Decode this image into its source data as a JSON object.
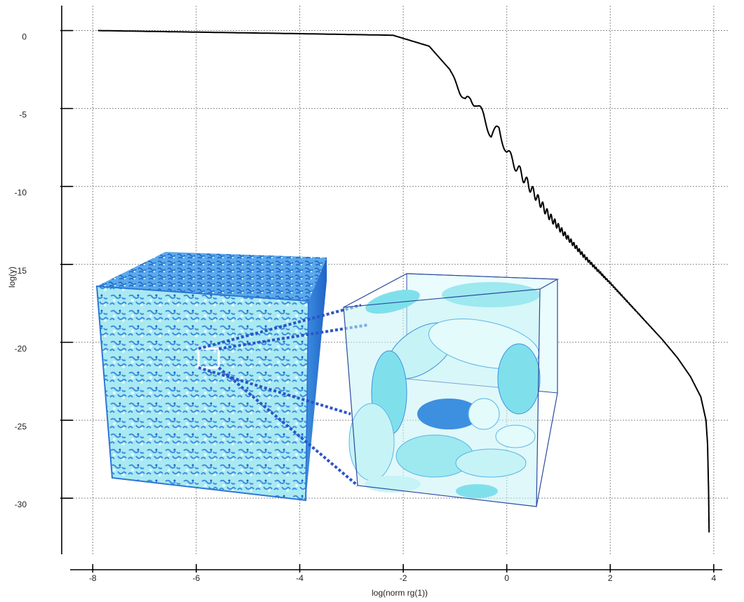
{
  "chart_data": {
    "type": "line",
    "xlabel": "log(norm rg(1))",
    "ylabel": "log(y)",
    "xlim": [
      -8.6,
      4.3
    ],
    "ylim": [
      -33.6,
      1.6
    ],
    "xticks": [
      -8,
      -6,
      -4,
      -2,
      0,
      2,
      4
    ],
    "yticks": [
      0,
      -5,
      -10,
      -15,
      -20,
      -25,
      -30
    ],
    "xtick_labels": [
      "-8",
      "-6",
      "-4",
      "-2",
      "0",
      "2",
      "4"
    ],
    "ytick_labels": [
      "0",
      "-5",
      "-10",
      "-15",
      "-20",
      "-25",
      "-30"
    ],
    "grid": true,
    "series": [
      {
        "color": "#000000",
        "x": [
          -7.9,
          -6,
          -4,
          -2.2,
          -1.5,
          -1.1,
          -0.8,
          -0.7,
          -0.6,
          -0.45,
          -0.3,
          -0.15,
          0,
          0.2,
          0.5,
          0.8,
          1.1,
          1.5,
          2,
          2.5,
          3,
          3.3,
          3.55,
          3.75,
          3.85,
          3.88,
          3.9,
          3.91
        ],
        "y": [
          0,
          -0.1,
          -0.2,
          -0.3,
          -1,
          -2.5,
          -4.6,
          -4.4,
          -4.6,
          -5.5,
          -6.7,
          -6.3,
          -7.8,
          -8.8,
          -10.3,
          -11.8,
          -13,
          -14.5,
          -16.2,
          -18,
          -19.8,
          -21,
          -22.2,
          -23.5,
          -25,
          -26.5,
          -29.5,
          -32.2
        ],
        "ripple": [
          0,
          0,
          0,
          0,
          0,
          0,
          0.3,
          0.3,
          0.3,
          0.3,
          0.3,
          0.3,
          0.35,
          0.35,
          0.3,
          0.25,
          0.18,
          0.12,
          0.06,
          0.03,
          0,
          0,
          0,
          0,
          0,
          0,
          0,
          0
        ]
      }
    ]
  },
  "inset": {
    "colors": {
      "light": "#c6f3f6",
      "mid": "#7fe0ec",
      "blue": "#3d8fe0",
      "deep": "#1f63c8",
      "connector": "#2b55c8"
    }
  }
}
